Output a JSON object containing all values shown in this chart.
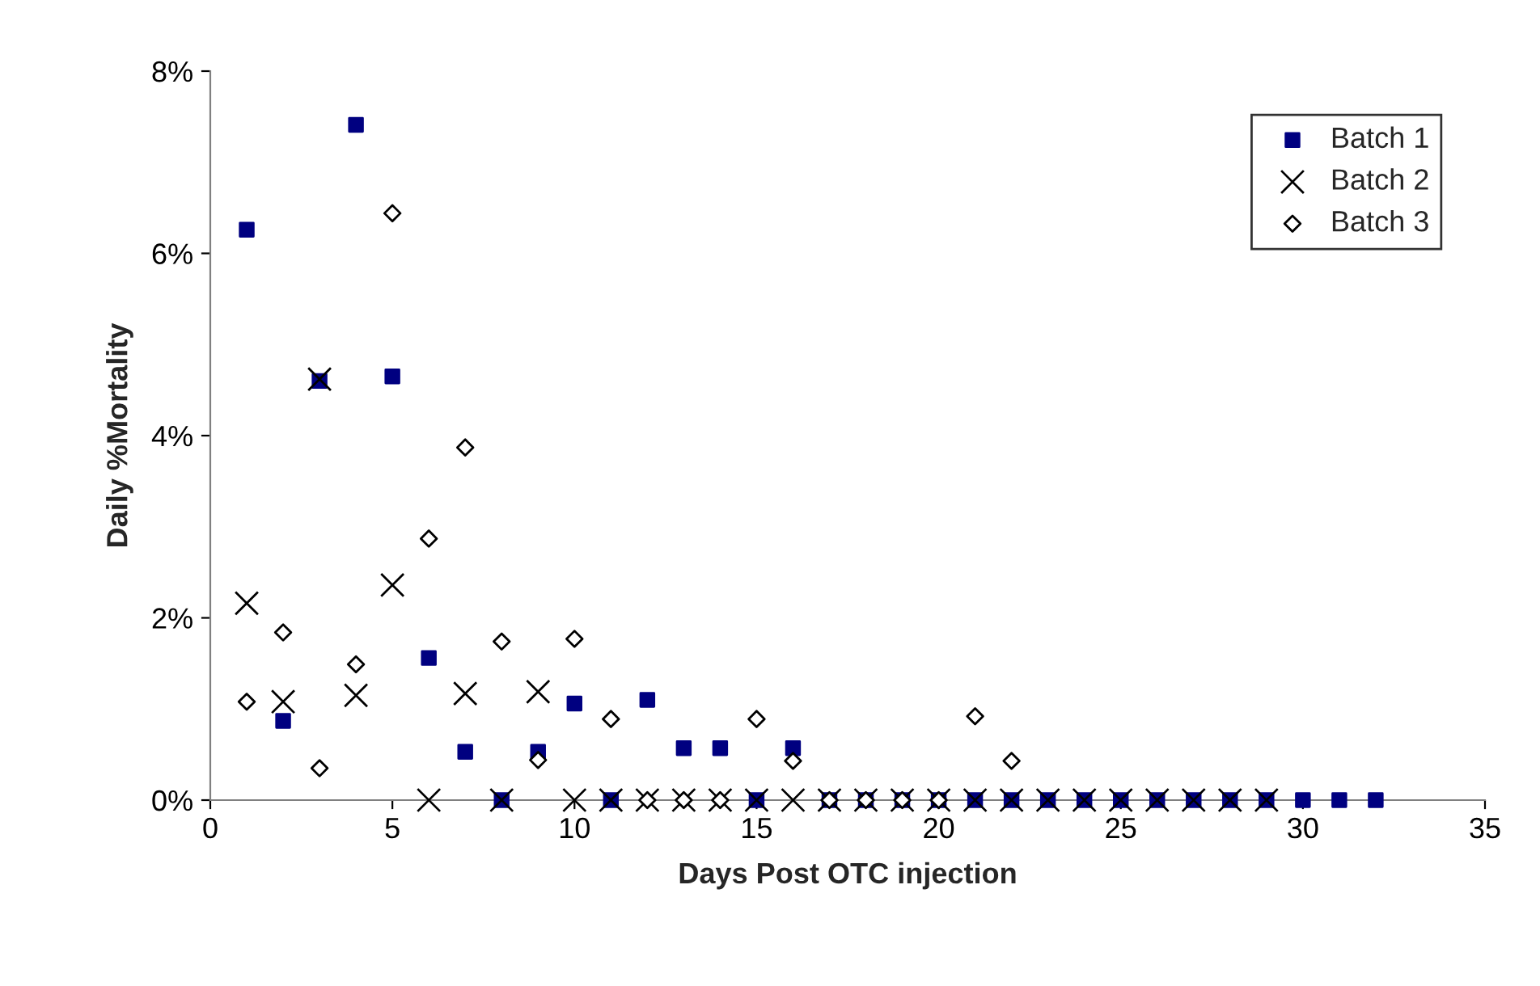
{
  "chart_data": {
    "type": "scatter",
    "xlabel": "Days Post OTC injection",
    "ylabel": "Daily %Mortality",
    "xlim": [
      0,
      35
    ],
    "xticks": [
      0,
      5,
      10,
      15,
      20,
      25,
      30,
      35
    ],
    "ylim": [
      0,
      8
    ],
    "yticks": [
      {
        "value": 0,
        "label": "0%"
      },
      {
        "value": 2,
        "label": "2%"
      },
      {
        "value": 4,
        "label": "4%"
      },
      {
        "value": 6,
        "label": "6%"
      },
      {
        "value": 8,
        "label": "8%"
      }
    ],
    "grid": false,
    "legend": "top right",
    "series": [
      {
        "name": "Batch 1",
        "color": "#000080",
        "marker": "square",
        "x": [
          1,
          2,
          3,
          4,
          5,
          6,
          7,
          8,
          9,
          10,
          11,
          12,
          13,
          14,
          15,
          16,
          17,
          18,
          19,
          20,
          21,
          22,
          23,
          24,
          25,
          26,
          27,
          28,
          29,
          30,
          31,
          32
        ],
        "values": [
          6.26,
          0.87,
          4.6,
          7.41,
          4.65,
          1.56,
          0.53,
          0,
          0.53,
          1.06,
          0,
          1.1,
          0.57,
          0.57,
          0,
          0.57,
          0,
          0,
          0,
          0,
          0,
          0,
          0,
          0,
          0,
          0,
          0,
          0,
          0,
          0,
          0,
          0
        ]
      },
      {
        "name": "Batch 2",
        "color": "#000000",
        "marker": "cross",
        "x": [
          1,
          2,
          3,
          4,
          5,
          6,
          7,
          8,
          9,
          10,
          11,
          12,
          13,
          14,
          15,
          16,
          17,
          18,
          19,
          20,
          21,
          22,
          23,
          24,
          25,
          26,
          27,
          28,
          29
        ],
        "values": [
          2.16,
          1.08,
          4.62,
          1.15,
          2.36,
          0,
          1.17,
          0,
          1.19,
          0,
          0,
          0,
          0,
          0,
          0,
          0,
          0,
          0,
          0,
          0,
          0,
          0,
          0,
          0,
          0,
          0,
          0,
          0,
          0
        ]
      },
      {
        "name": "Batch 3",
        "color": "#000000",
        "marker": "diamond",
        "x": [
          1,
          2,
          3,
          4,
          5,
          6,
          7,
          8,
          9,
          10,
          11,
          12,
          13,
          14,
          15,
          16,
          17,
          18,
          19,
          20,
          21,
          22
        ],
        "values": [
          1.08,
          1.84,
          0.35,
          1.49,
          6.44,
          2.87,
          3.87,
          1.74,
          0.44,
          1.77,
          0.89,
          0,
          0,
          0,
          0.89,
          0.43,
          0,
          0,
          0,
          0,
          0.92,
          0.43
        ]
      }
    ]
  }
}
